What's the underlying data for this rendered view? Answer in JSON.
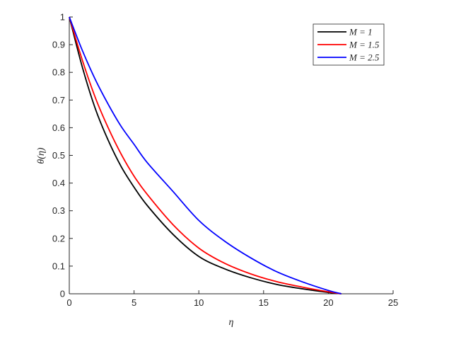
{
  "chart_data": {
    "type": "line",
    "title": "",
    "xlabel": "η",
    "ylabel": "θ(η)",
    "xlim": [
      0,
      25
    ],
    "ylim": [
      0,
      1
    ],
    "xticks": [
      0,
      5,
      10,
      15,
      20,
      25
    ],
    "yticks": [
      0,
      0.1,
      0.2,
      0.3,
      0.4,
      0.5,
      0.6,
      0.7,
      0.8,
      0.9,
      1
    ],
    "grid": false,
    "legend_position": "top-right",
    "x": [
      0,
      1,
      2,
      3,
      4,
      5,
      6,
      8,
      10,
      12,
      14,
      16,
      18,
      20,
      21
    ],
    "series": [
      {
        "name": "M = 1",
        "color": "#000000",
        "values": [
          1,
          0.82,
          0.67,
          0.555,
          0.46,
          0.385,
          0.32,
          0.215,
          0.135,
          0.09,
          0.058,
          0.034,
          0.018,
          0.005,
          0
        ]
      },
      {
        "name": "M = 1.5",
        "color": "#ff0000",
        "values": [
          1,
          0.845,
          0.71,
          0.6,
          0.505,
          0.425,
          0.36,
          0.25,
          0.165,
          0.11,
          0.072,
          0.044,
          0.024,
          0.007,
          0
        ]
      },
      {
        "name": "M = 2.5",
        "color": "#0000ff",
        "values": [
          1,
          0.88,
          0.775,
          0.685,
          0.605,
          0.54,
          0.475,
          0.37,
          0.265,
          0.19,
          0.13,
          0.08,
          0.043,
          0.012,
          0
        ]
      }
    ]
  }
}
